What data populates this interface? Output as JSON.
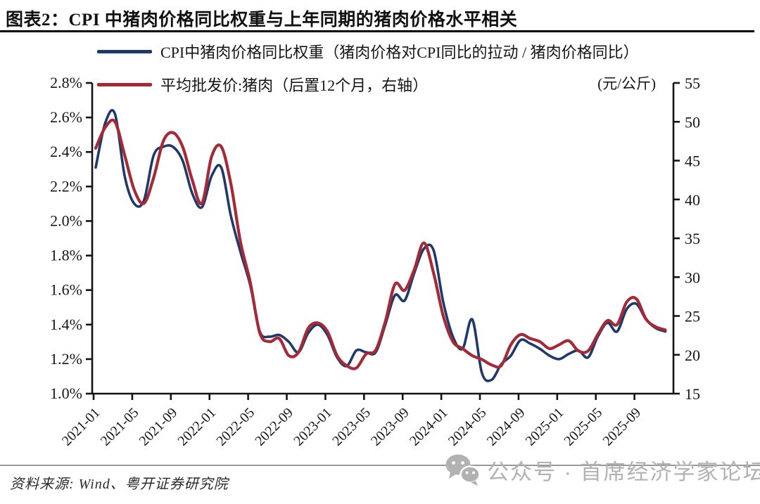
{
  "header": {
    "title": "图表2：CPI 中猪肉价格同比权重与上年同期的猪肉价格水平相关"
  },
  "legend": [
    {
      "label": "CPI中猪肉价格同比权重（猪肉价格对CPI同比的拉动 / 猪肉价格同比）",
      "color": "#1F3A68"
    },
    {
      "label": "平均批发价:猪肉（后置12个月，右轴）",
      "color": "#A52A38"
    }
  ],
  "footer": {
    "source": "资料来源: Wind、粤开证券研究院"
  },
  "watermark": {
    "icon": "wechat-icon",
    "text": "公众号 · 首席经济学家论坛"
  },
  "chart_data": {
    "type": "line",
    "x": [
      "2021-01",
      "2021-02",
      "2021-03",
      "2021-04",
      "2021-05",
      "2021-06",
      "2021-07",
      "2021-08",
      "2021-09",
      "2021-10",
      "2021-11",
      "2021-12",
      "2022-01",
      "2022-02",
      "2022-03",
      "2022-04",
      "2022-05",
      "2022-06",
      "2022-07",
      "2022-08",
      "2022-09",
      "2022-10",
      "2022-11",
      "2022-12",
      "2023-01",
      "2023-02",
      "2023-03",
      "2023-04",
      "2023-05",
      "2023-06",
      "2023-07",
      "2023-08",
      "2023-09",
      "2023-10",
      "2023-11",
      "2023-12",
      "2024-01",
      "2024-02",
      "2024-03",
      "2024-04",
      "2024-05",
      "2024-06",
      "2024-07",
      "2024-08",
      "2024-09",
      "2024-10",
      "2024-11",
      "2024-12",
      "2025-01",
      "2025-02",
      "2025-03",
      "2025-04",
      "2025-05",
      "2025-06",
      "2025-07",
      "2025-08",
      "2025-09",
      "2025-10",
      "2025-11",
      "2025-12"
    ],
    "series": [
      {
        "name": "CPI中猪肉价格同比权重（猪肉价格对CPI同比的拉动 / 猪肉价格同比）",
        "axis": "left",
        "unit": "%",
        "color": "#1F3A68",
        "values": [
          2.31,
          2.57,
          2.62,
          2.26,
          2.1,
          2.12,
          2.38,
          2.43,
          2.43,
          2.35,
          2.16,
          2.08,
          2.26,
          2.31,
          2.03,
          1.82,
          1.63,
          1.36,
          1.33,
          1.34,
          1.3,
          1.24,
          1.35,
          1.4,
          1.34,
          1.21,
          1.16,
          1.25,
          1.24,
          1.24,
          1.4,
          1.57,
          1.54,
          1.7,
          1.84,
          1.83,
          1.53,
          1.33,
          1.26,
          1.43,
          1.12,
          1.08,
          1.17,
          1.22,
          1.31,
          1.29,
          1.26,
          1.22,
          1.2,
          1.23,
          1.25,
          1.21,
          1.33,
          1.41,
          1.36,
          1.49,
          1.52,
          1.43,
          1.38,
          1.36
        ]
      },
      {
        "name": "平均批发价:猪肉（后置12个月，右轴）",
        "axis": "right",
        "unit": "元/公斤",
        "color": "#A52A38",
        "values": [
          46.6,
          49.3,
          50.0,
          45.7,
          41.2,
          39.5,
          42.8,
          47.5,
          48.6,
          46.8,
          42.5,
          39.5,
          45.5,
          46.8,
          42.0,
          34.5,
          29.4,
          22.8,
          21.7,
          22.1,
          19.9,
          20.3,
          23.4,
          24.1,
          23.0,
          19.9,
          18.6,
          18.3,
          20.1,
          20.6,
          24.3,
          29.1,
          28.3,
          31.0,
          34.4,
          30.5,
          25.0,
          21.7,
          20.8,
          19.9,
          19.4,
          18.7,
          18.6,
          21.3,
          22.6,
          22.1,
          21.7,
          20.8,
          21.3,
          21.8,
          20.5,
          20.5,
          22.6,
          24.4,
          23.9,
          26.8,
          27.2,
          24.6,
          23.6,
          23.2
        ]
      }
    ],
    "left_axis": {
      "min": 1.0,
      "max": 2.8,
      "ticks": [
        "2.8%",
        "2.6%",
        "2.4%",
        "2.2%",
        "2.0%",
        "1.8%",
        "1.6%",
        "1.4%",
        "1.2%",
        "1.0%"
      ]
    },
    "right_axis": {
      "min": 15,
      "max": 55,
      "unit": "(元/公斤)",
      "ticks": [
        "55",
        "50",
        "45",
        "40",
        "35",
        "30",
        "25",
        "20",
        "15"
      ]
    },
    "x_ticks": [
      "2021-01",
      "2021-05",
      "2021-09",
      "2022-01",
      "2022-05",
      "2022-09",
      "2023-01",
      "2023-05",
      "2023-09",
      "2024-01",
      "2024-05",
      "2024-09",
      "2025-01",
      "2025-05",
      "2025-09"
    ],
    "title": "图表2：CPI 中猪肉价格同比权重与上年同期的猪肉价格水平相关",
    "grid": false,
    "legend_position": "top-left"
  }
}
